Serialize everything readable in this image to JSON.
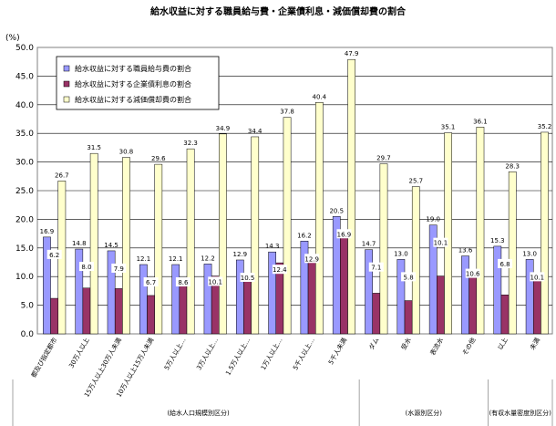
{
  "chart_data": {
    "type": "bar",
    "title": "給水収益に対する職員給与費・企業債利息・減価償却費の割合",
    "ylabel": "(%)",
    "ylim": [
      0,
      50
    ],
    "yticks": [
      "0.0",
      "5.0",
      "10.0",
      "15.0",
      "20.0",
      "25.0",
      "30.0",
      "35.0",
      "40.0",
      "45.0",
      "50.0"
    ],
    "grid": true,
    "legend_position": "top-left",
    "categories": [
      "都及び指定都市",
      "30万人以上",
      "15万人以上30万人未満",
      "10万人以上15万人未満",
      "5万人以上…",
      "3万人以上…",
      "1.5万人以上…",
      "1万人以上…",
      "5千人以上…",
      "5千人未満",
      "ダム",
      "受水",
      "表流水",
      "その他",
      "以上",
      "未満"
    ],
    "series": [
      {
        "name": "給水収益に対する職員給与費の割合",
        "color": "#9999ff",
        "values": [
          16.9,
          14.8,
          14.5,
          12.1,
          12.1,
          12.2,
          12.9,
          14.3,
          16.2,
          20.5,
          14.7,
          13.0,
          19.0,
          13.6,
          15.3,
          13.0
        ],
        "labels": [
          "16.9",
          "14.8",
          "14.5",
          "12.1",
          "12.1",
          "12.2",
          "12.9",
          "14.3",
          "16.2",
          "20.5",
          "14.7",
          "13.0",
          "19.0",
          "13.6",
          "15.3",
          "13.0"
        ]
      },
      {
        "name": "給水収益に対する企業債利息の割合",
        "color": "#993366",
        "values": [
          6.2,
          8.0,
          7.9,
          6.7,
          8.6,
          10.1,
          10.5,
          12.4,
          12.9,
          16.9,
          7.1,
          5.8,
          10.1,
          10.6,
          6.8,
          10.1
        ],
        "labels": [
          "6.2",
          "8.0",
          "7.9",
          "6.7",
          "8.6",
          "10.1",
          "10.5",
          "12.4",
          "12.9",
          "16.9",
          "7.1",
          "5.8",
          "10.1",
          "10.6",
          "6.8",
          "10.1"
        ]
      },
      {
        "name": "給水収益に対する減価償却費の割合",
        "color": "#ffffcc",
        "values": [
          26.7,
          31.5,
          30.8,
          29.6,
          32.3,
          34.9,
          34.4,
          37.8,
          40.4,
          47.9,
          29.7,
          25.7,
          35.1,
          36.1,
          28.3,
          35.2
        ],
        "labels": [
          "26.7",
          "31.5",
          "30.8",
          "29.6",
          "32.3",
          "34.9",
          "34.4",
          "37.8",
          "40.4",
          "47.9",
          "29.7",
          "25.7",
          "35.1",
          "36.1",
          "28.3",
          "35.2"
        ]
      }
    ],
    "groups": [
      {
        "label": "(給水人口規模別区分)",
        "start": 0,
        "end": 9
      },
      {
        "label": "(水源別区分)",
        "start": 10,
        "end": 13
      },
      {
        "label": "(有収水量密度別区分)",
        "start": 14,
        "end": 15
      }
    ]
  }
}
